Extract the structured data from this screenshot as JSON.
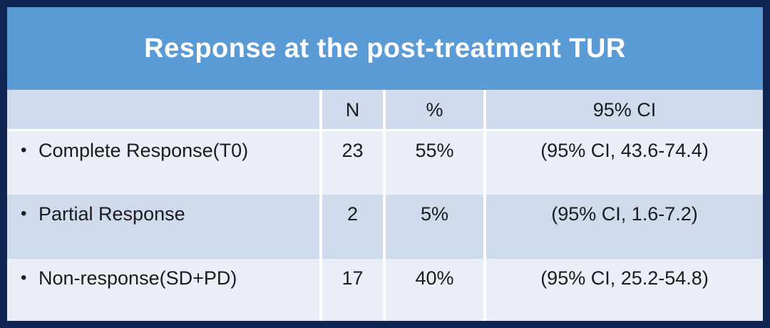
{
  "title": "Response at the post-treatment TUR",
  "table": {
    "bullet": "•",
    "columns": [
      "",
      "N",
      "%",
      "95% CI"
    ],
    "rows": [
      {
        "label": "Complete Response(T0)",
        "n": "23",
        "pct": "55%",
        "ci": "(95% CI, 43.6-74.4)"
      },
      {
        "label": "Partial Response",
        "n": "2",
        "pct": "5%",
        "ci": "(95% CI, 1.6-7.2)"
      },
      {
        "label": "Non-response(SD+PD)",
        "n": "17",
        "pct": "40%",
        "ci": "(95% CI, 25.2-54.8)"
      }
    ]
  },
  "colors": {
    "outer_border_navy": "#0f2451",
    "title_band_blue": "#5b9bd5",
    "title_text_white": "#ffffff",
    "header_band_blue": "#cfdaed",
    "row_band_light": "#eaeef7",
    "row_band_medium": "#cfdaed",
    "divider_white": "#ffffff",
    "body_text": "#1b1b1b"
  }
}
